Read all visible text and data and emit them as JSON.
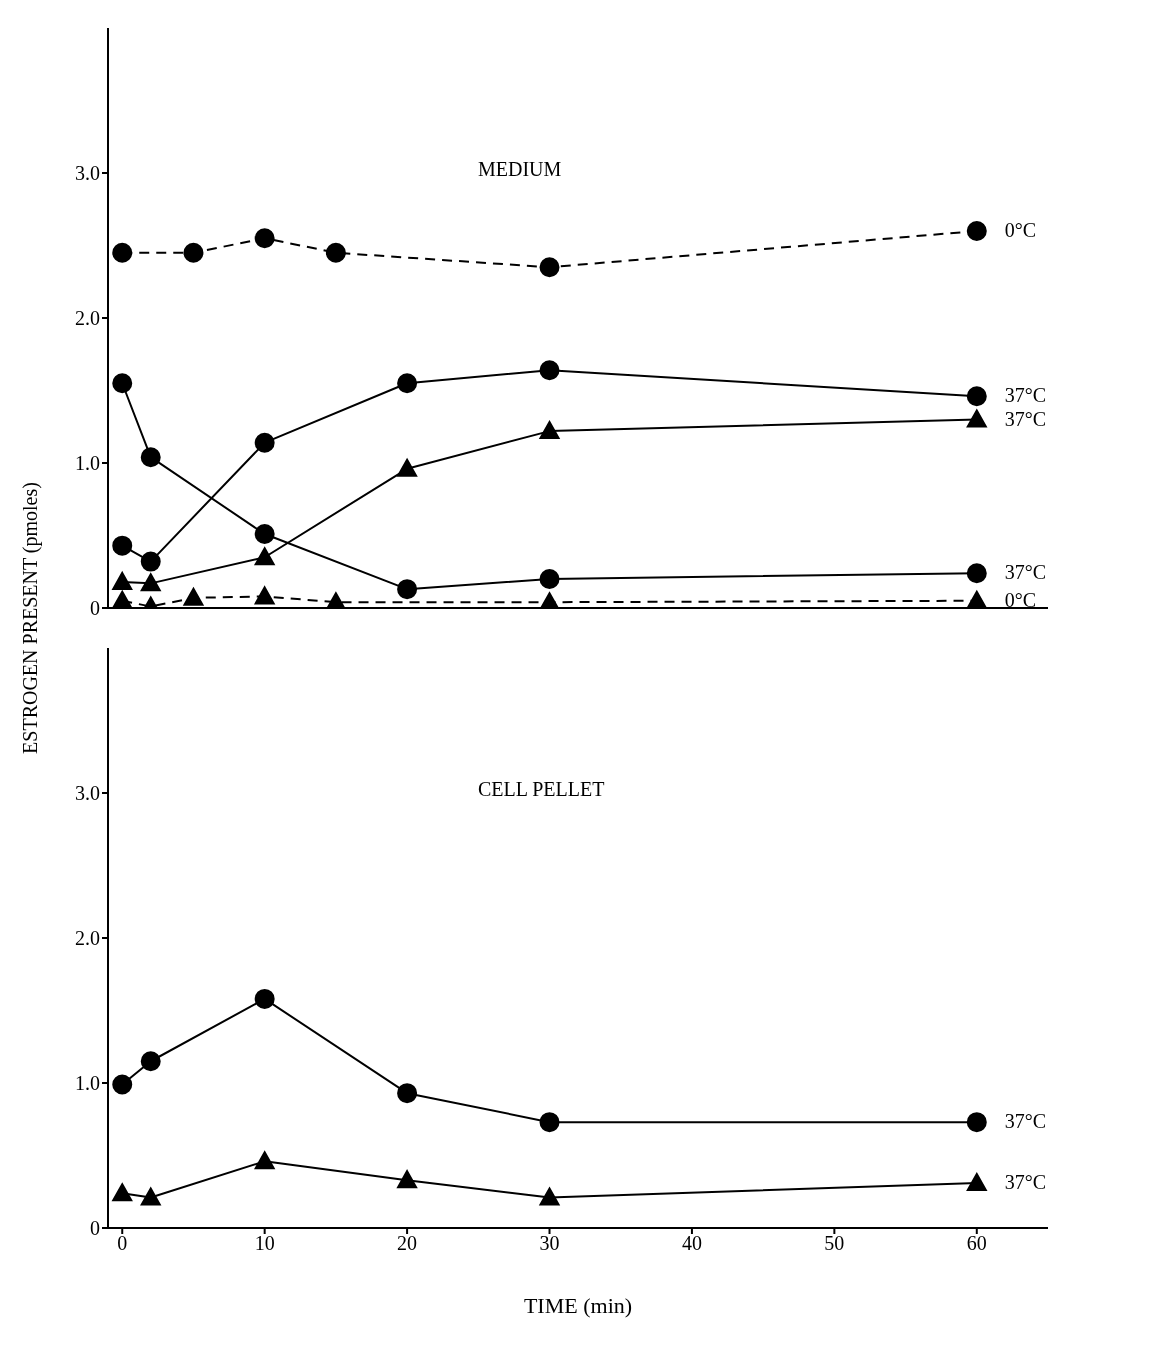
{
  "chart_data": [
    {
      "type": "line",
      "ylabel": "ESTROGEN PRESENT (pmoles)",
      "annotations": [
        "MEDIUM"
      ],
      "xlim": [
        -1,
        65
      ],
      "ylim": [
        0,
        4
      ],
      "yticks": [
        0,
        {
          "value": 1,
          "label": "1.0"
        },
        {
          "value": 2,
          "label": "2.0"
        },
        {
          "value": 3,
          "label": "3.0"
        }
      ],
      "tick_labels": "y",
      "legend": false,
      "grid": false,
      "series": [
        {
          "name": "0°C",
          "color": "#000000",
          "marker": "circle",
          "line_style": "dashed",
          "x": [
            0,
            5,
            10,
            15,
            30,
            60
          ],
          "values": [
            2.45,
            2.45,
            2.55,
            2.45,
            2.35,
            2.6
          ]
        },
        {
          "name": "37°C",
          "color": "#000000",
          "marker": "circle",
          "line_style": "solid",
          "x": [
            0,
            2,
            10,
            20,
            30,
            60
          ],
          "values": [
            0.43,
            0.32,
            1.14,
            1.55,
            1.64,
            1.46
          ]
        },
        {
          "name": "37°C",
          "color": "#000000",
          "marker": "triangle",
          "line_style": "solid",
          "x": [
            0,
            2,
            10,
            20,
            30,
            60
          ],
          "values": [
            0.18,
            0.17,
            0.35,
            0.96,
            1.22,
            1.3
          ]
        },
        {
          "name": "37°C",
          "color": "#000000",
          "marker": "circle",
          "line_style": "solid",
          "x": [
            0,
            2,
            10,
            20,
            30,
            60
          ],
          "values": [
            1.55,
            1.04,
            0.51,
            0.13,
            0.2,
            0.24
          ]
        },
        {
          "name": "0°C",
          "color": "#000000",
          "marker": "triangle",
          "line_style": "dashed",
          "x": [
            0,
            2,
            5,
            10,
            15,
            30,
            60
          ],
          "values": [
            0.05,
            0.01,
            0.07,
            0.08,
            0.04,
            0.04,
            0.05
          ]
        }
      ]
    },
    {
      "type": "line",
      "xlabel": "TIME (min)",
      "annotations": [
        "CELL PELLET"
      ],
      "xlim": [
        -1,
        65
      ],
      "xticks": [
        0,
        10,
        20,
        30,
        40,
        50,
        60
      ],
      "ylim": [
        0,
        4
      ],
      "yticks": [
        0,
        {
          "value": 1,
          "label": "1.0"
        },
        {
          "value": 2,
          "label": "2.0"
        },
        {
          "value": 3,
          "label": "3.0"
        }
      ],
      "legend": false,
      "grid": false,
      "series": [
        {
          "name": "37°C",
          "color": "#000000",
          "marker": "circle",
          "line_style": "solid",
          "x": [
            0,
            2,
            10,
            20,
            30,
            60
          ],
          "values": [
            0.99,
            1.15,
            1.58,
            0.93,
            0.73,
            0.73
          ]
        },
        {
          "name": "37°C",
          "color": "#000000",
          "marker": "triangle",
          "line_style": "solid",
          "x": [
            0,
            2,
            10,
            20,
            30,
            60
          ],
          "values": [
            0.24,
            0.21,
            0.46,
            0.33,
            0.21,
            0.31
          ]
        }
      ]
    }
  ]
}
